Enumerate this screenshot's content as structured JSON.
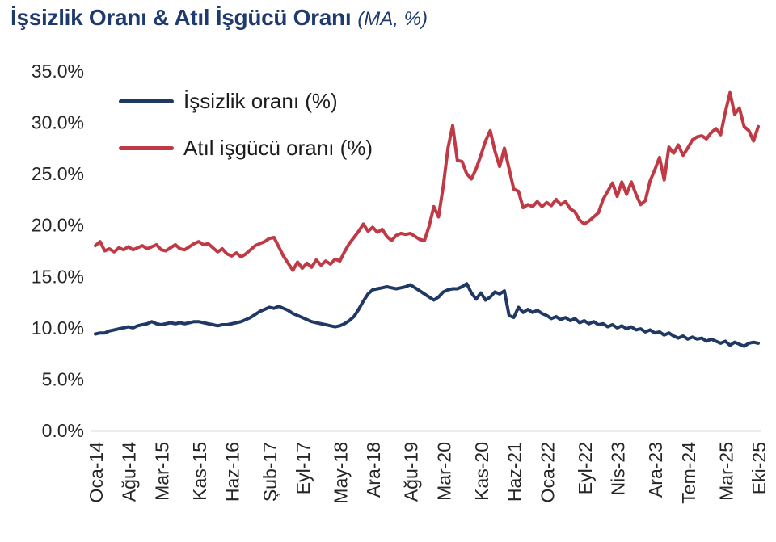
{
  "title": {
    "main": "İşsizlik Oranı & Atıl İşgücü Oranı",
    "suffix": "(MA, %)"
  },
  "legend": [
    {
      "label": "İşsizlik oranı (%)",
      "color": "#1f3864"
    },
    {
      "label": "Atıl işgücü oranı (%)",
      "color": "#bf3a44"
    }
  ],
  "colors": {
    "title": "#1e3a6e",
    "axis_line": "#d9d9d9",
    "tick_label": "#262626",
    "background": "#ffffff"
  },
  "chart_data": {
    "type": "line",
    "title": "İşsizlik Oranı & Atıl İşgücü Oranı (MA, %)",
    "xlabel": "",
    "ylabel": "",
    "frequency": "monthly",
    "x_start": "Oca-14",
    "x_end": "Eki-25",
    "ylim": [
      0,
      35
    ],
    "grid": false,
    "legend_position": "top-left-inside",
    "y_ticks": [
      {
        "label": "35.0%",
        "v": 35
      },
      {
        "label": "30.0%",
        "v": 30
      },
      {
        "label": "25.0%",
        "v": 25
      },
      {
        "label": "20.0%",
        "v": 20
      },
      {
        "label": "15.0%",
        "v": 15
      },
      {
        "label": "10.0%",
        "v": 10
      },
      {
        "label": "5.0%",
        "v": 5
      },
      {
        "label": "0.0%",
        "v": 0
      }
    ],
    "x_ticks": [
      {
        "label": "Oca-14",
        "m": 0
      },
      {
        "label": "Ağu-14",
        "m": 7
      },
      {
        "label": "Mar-15",
        "m": 14
      },
      {
        "label": "Kas-15",
        "m": 22
      },
      {
        "label": "Haz-16",
        "m": 29
      },
      {
        "label": "Şub-17",
        "m": 37
      },
      {
        "label": "Eyl-17",
        "m": 44
      },
      {
        "label": "May-18",
        "m": 52
      },
      {
        "label": "Ara-18",
        "m": 59
      },
      {
        "label": "Ağu-19",
        "m": 67
      },
      {
        "label": "Mar-20",
        "m": 74
      },
      {
        "label": "Kas-20",
        "m": 82
      },
      {
        "label": "Haz-21",
        "m": 89
      },
      {
        "label": "Oca-22",
        "m": 96
      },
      {
        "label": "Eyl-22",
        "m": 104
      },
      {
        "label": "Nis-23",
        "m": 111
      },
      {
        "label": "Ara-23",
        "m": 119
      },
      {
        "label": "Tem-24",
        "m": 126
      },
      {
        "label": "Mar-25",
        "m": 134
      },
      {
        "label": "Eki-25",
        "m": 141
      }
    ],
    "series": [
      {
        "name": "İşsizlik oranı (%)",
        "color": "#1f3864",
        "values": [
          9.4,
          9.5,
          9.5,
          9.7,
          9.8,
          9.9,
          10.0,
          10.1,
          10.0,
          10.2,
          10.3,
          10.4,
          10.6,
          10.4,
          10.3,
          10.4,
          10.5,
          10.4,
          10.5,
          10.4,
          10.5,
          10.6,
          10.6,
          10.5,
          10.4,
          10.3,
          10.2,
          10.3,
          10.3,
          10.4,
          10.5,
          10.6,
          10.8,
          11.0,
          11.3,
          11.6,
          11.8,
          12.0,
          11.9,
          12.1,
          11.9,
          11.7,
          11.4,
          11.2,
          11.0,
          10.8,
          10.6,
          10.5,
          10.4,
          10.3,
          10.2,
          10.1,
          10.2,
          10.4,
          10.7,
          11.1,
          11.8,
          12.6,
          13.3,
          13.7,
          13.8,
          13.9,
          14.0,
          13.9,
          13.8,
          13.9,
          14.0,
          14.2,
          13.9,
          13.6,
          13.3,
          13.0,
          12.7,
          13.0,
          13.5,
          13.7,
          13.8,
          13.8,
          14.0,
          14.3,
          13.4,
          12.8,
          13.4,
          12.7,
          13.0,
          13.5,
          13.3,
          13.6,
          11.2,
          11.0,
          12.0,
          11.5,
          11.8,
          11.5,
          11.7,
          11.4,
          11.2,
          10.9,
          11.1,
          10.8,
          11.0,
          10.7,
          10.9,
          10.5,
          10.7,
          10.4,
          10.6,
          10.3,
          10.4,
          10.1,
          10.3,
          10.0,
          10.2,
          9.9,
          10.1,
          9.8,
          9.9,
          9.6,
          9.8,
          9.5,
          9.6,
          9.3,
          9.5,
          9.2,
          9.0,
          9.2,
          8.9,
          9.1,
          8.9,
          9.0,
          8.7,
          8.9,
          8.7,
          8.5,
          8.7,
          8.3,
          8.6,
          8.4,
          8.2,
          8.5,
          8.6,
          8.5
        ]
      },
      {
        "name": "Atıl işgücü oranı (%)",
        "color": "#bf3a44",
        "values": [
          18.0,
          18.4,
          17.5,
          17.7,
          17.4,
          17.8,
          17.6,
          17.9,
          17.6,
          17.8,
          18.0,
          17.7,
          17.9,
          18.1,
          17.6,
          17.5,
          17.8,
          18.1,
          17.7,
          17.6,
          17.9,
          18.2,
          18.4,
          18.1,
          18.2,
          17.8,
          17.4,
          17.7,
          17.2,
          17.0,
          17.3,
          16.9,
          17.2,
          17.6,
          18.0,
          18.2,
          18.4,
          18.7,
          18.8,
          17.9,
          17.0,
          16.3,
          15.6,
          16.4,
          15.8,
          16.3,
          15.9,
          16.6,
          16.1,
          16.5,
          16.2,
          16.7,
          16.5,
          17.4,
          18.2,
          18.8,
          19.4,
          20.1,
          19.4,
          19.8,
          19.3,
          19.6,
          18.9,
          18.5,
          19.0,
          19.2,
          19.1,
          19.2,
          18.9,
          18.6,
          18.5,
          19.9,
          21.8,
          20.8,
          23.8,
          27.5,
          29.7,
          26.3,
          26.2,
          25.0,
          24.5,
          25.5,
          26.8,
          28.2,
          29.2,
          27.2,
          25.7,
          27.5,
          25.5,
          23.5,
          23.3,
          21.7,
          22.0,
          21.8,
          22.3,
          21.8,
          22.2,
          21.9,
          22.5,
          22.0,
          22.3,
          21.6,
          21.3,
          20.5,
          20.1,
          20.4,
          20.8,
          21.2,
          22.5,
          23.3,
          24.1,
          22.8,
          24.2,
          23.0,
          24.2,
          23.0,
          22.0,
          22.4,
          24.3,
          25.4,
          26.6,
          24.4,
          27.6,
          27.0,
          27.8,
          26.8,
          27.5,
          28.3,
          28.6,
          28.7,
          28.4,
          29.0,
          29.4,
          28.8,
          31.0,
          32.9,
          30.8,
          31.4,
          29.6,
          29.2,
          28.2,
          29.6
        ]
      }
    ]
  }
}
